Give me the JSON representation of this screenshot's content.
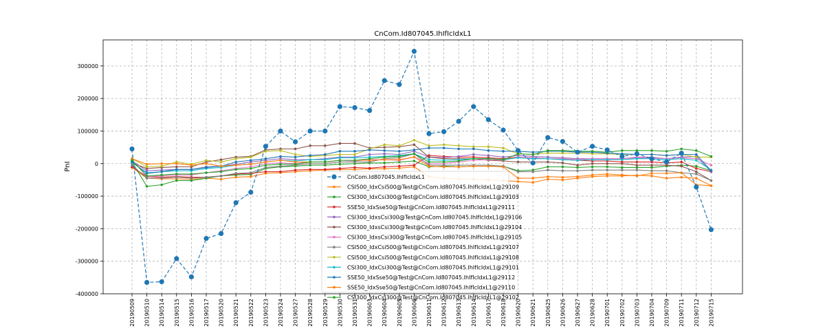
{
  "chart_data": {
    "type": "line",
    "title": "CnCom.Id807045.IhIfIcIdxL1",
    "xlabel": "",
    "ylabel": "PnI",
    "ylim": [
      -400000,
      380000
    ],
    "yticks": [
      -400000,
      -300000,
      -200000,
      -100000,
      0,
      100000,
      200000,
      300000
    ],
    "grid": true,
    "legend_position": "lower-center",
    "x": [
      "20190509",
      "20190510",
      "20190514",
      "20190515",
      "20190516",
      "20190517",
      "20190520",
      "20190521",
      "20190522",
      "20190523",
      "20190524",
      "20190527",
      "20190528",
      "20190529",
      "20190530",
      "20190531",
      "20190603",
      "20190604",
      "20190605",
      "20190606",
      "20190611",
      "20190612",
      "20190613",
      "20190614",
      "20190617",
      "20190618",
      "20190620",
      "20190621",
      "20190625",
      "20190626",
      "20190627",
      "20190628",
      "20190701",
      "20190702",
      "20190703",
      "20190704",
      "20190709",
      "20190711",
      "20190712",
      "20190715"
    ],
    "series": [
      {
        "name": "CnCom.Id807045.IhIfIcIdxL1",
        "color": "#1f77b4",
        "style": "dashed-big",
        "values": [
          45000,
          -365000,
          -363000,
          -292000,
          -348000,
          -230000,
          -215000,
          -120000,
          -88000,
          53000,
          100000,
          67000,
          100000,
          100000,
          175000,
          172000,
          163000,
          255000,
          243000,
          345000,
          92000,
          98000,
          130000,
          175000,
          135000,
          103000,
          40000,
          2000,
          80000,
          68000,
          35000,
          53000,
          42000,
          22000,
          30000,
          15000,
          5000,
          32000,
          -72000,
          -203000
        ]
      },
      {
        "name": "CSI500_IdxCsi500@Test@CnCom.Id807045.IhIfIcIdxL1@29109",
        "color": "#ff7f0e",
        "values": [
          -12000,
          -45000,
          -47000,
          -47000,
          -48000,
          -45000,
          -48000,
          -42000,
          -40000,
          -30000,
          -28000,
          -25000,
          -22000,
          -20000,
          -18000,
          -18000,
          -16000,
          -16000,
          -14000,
          -10000,
          -40000,
          -45000,
          -47000,
          -48000,
          -50000,
          -52000,
          -55000,
          -58000,
          -48000,
          -50000,
          -45000,
          -40000,
          -38000,
          -38000,
          -36000,
          -38000,
          -45000,
          -42000,
          -45000,
          -68000
        ]
      },
      {
        "name": "CSI300_IdxCsi300@Test@CnCom.Id807045.IhIfIcIdxL1@29103",
        "color": "#2ca02c",
        "values": [
          5000,
          -70000,
          -65000,
          -52000,
          -52000,
          -45000,
          -38000,
          -35000,
          -33000,
          -15000,
          -10000,
          -8000,
          -5000,
          -5000,
          -2000,
          0,
          2000,
          2000,
          5000,
          8000,
          -10000,
          -8000,
          -10000,
          -8000,
          -8000,
          -8000,
          -22000,
          -20000,
          -10000,
          -10000,
          -12000,
          -10000,
          -10000,
          -12000,
          -12000,
          -12000,
          -8000,
          -5000,
          -8000,
          -22000
        ]
      },
      {
        "name": "SSE50_IdxSse50@Test@CnCom.Id807045.IhIfIcIdxL1@29111",
        "color": "#d62728",
        "values": [
          -10000,
          -40000,
          -42000,
          -40000,
          -42000,
          -42000,
          -38000,
          -32000,
          -30000,
          -25000,
          -25000,
          -20000,
          -18000,
          -18000,
          -15000,
          -12000,
          -14000,
          -10000,
          -8000,
          -5000,
          25000,
          22000,
          20000,
          20000,
          18000,
          15000,
          20000,
          18000,
          15000,
          12000,
          10000,
          8000,
          8000,
          5000,
          5000,
          5000,
          2000,
          5000,
          -15000,
          -25000
        ]
      },
      {
        "name": "CSI300_IdxsCsi300@Test@CnCom.Id807045.IhIfIcIdxL1@29106",
        "color": "#9467bd",
        "values": [
          8000,
          -22000,
          -20000,
          -18000,
          -18000,
          -10000,
          -8000,
          -2000,
          5000,
          10000,
          15000,
          12000,
          12000,
          15000,
          20000,
          20000,
          28000,
          30000,
          28000,
          38000,
          20000,
          18000,
          22000,
          28000,
          25000,
          20000,
          25000,
          22000,
          20000,
          18000,
          15000,
          15000,
          15000,
          15000,
          18000,
          18000,
          15000,
          20000,
          22000,
          -25000
        ]
      },
      {
        "name": "CSI300_IdxsCsi300@Test@CnCom.Id807045.IhIfIcIdxL1@29104",
        "color": "#8c564b",
        "values": [
          2000,
          -15000,
          -12000,
          -10000,
          -10000,
          5000,
          12000,
          20000,
          22000,
          42000,
          45000,
          45000,
          55000,
          55000,
          62000,
          62000,
          48000,
          50000,
          52000,
          58000,
          20000,
          15000,
          15000,
          15000,
          10000,
          8000,
          5000,
          5000,
          5000,
          2000,
          -5000,
          0,
          0,
          0,
          -5000,
          -5000,
          -5000,
          -8000,
          -25000,
          -52000
        ]
      },
      {
        "name": "CSI300_IdxsCsi300@Test@CnCom.Id807045.IhIfIcIdxL1@29105",
        "color": "#e377c2",
        "values": [
          12000,
          -40000,
          -38000,
          -35000,
          -35000,
          -28000,
          -22000,
          -15000,
          -10000,
          0,
          2000,
          0,
          5000,
          5000,
          10000,
          8000,
          12000,
          12000,
          10000,
          20000,
          0,
          0,
          5000,
          10000,
          12000,
          10000,
          20000,
          18000,
          15000,
          15000,
          12000,
          15000,
          15000,
          15000,
          20000,
          20000,
          15000,
          18000,
          15000,
          -5000
        ]
      },
      {
        "name": "CSI500_IdxCsi500@Test@CnCom.Id807045.IhIfIcIdxL1@29107",
        "color": "#7f7f7f",
        "values": [
          -5000,
          -45000,
          -45000,
          -42000,
          -45000,
          -42000,
          -38000,
          -30000,
          -28000,
          -12000,
          -8000,
          -5000,
          0,
          0,
          5000,
          5000,
          5000,
          15000,
          18000,
          30000,
          -5000,
          -5000,
          -5000,
          -5000,
          -5000,
          -8000,
          -25000,
          -25000,
          -20000,
          -22000,
          -22000,
          -20000,
          -20000,
          -20000,
          -20000,
          -22000,
          -22000,
          -28000,
          -32000,
          -52000
        ]
      },
      {
        "name": "CSI500_IdxCsi500@Test@CnCom.Id807045.IhIfIcIdxL1@29108",
        "color": "#bcbd22",
        "values": [
          15000,
          -10000,
          -8000,
          5000,
          -2000,
          10000,
          5000,
          15000,
          20000,
          38000,
          40000,
          28000,
          22000,
          25000,
          28000,
          28000,
          45000,
          58000,
          55000,
          72000,
          55000,
          58000,
          55000,
          52000,
          52000,
          48000,
          30000,
          28000,
          32000,
          32000,
          32000,
          30000,
          30000,
          28000,
          28000,
          28000,
          25000,
          28000,
          20000,
          20000
        ]
      },
      {
        "name": "CSI300_IdxCsi300@Test@CnCom.Id807045.IhIfIcIdxL1@29101",
        "color": "#17becf",
        "values": [
          3000,
          -28000,
          -25000,
          -22000,
          -22000,
          -15000,
          -12000,
          -5000,
          -2000,
          5000,
          10000,
          8000,
          12000,
          12000,
          18000,
          18000,
          20000,
          22000,
          25000,
          30000,
          12000,
          10000,
          12000,
          15000,
          15000,
          12000,
          18000,
          15000,
          15000,
          12000,
          10000,
          12000,
          12000,
          12000,
          15000,
          15000,
          12000,
          15000,
          10000,
          -20000
        ]
      },
      {
        "name": "SSE50_IdxSse50@Test@CnCom.Id807045.IhIfIcIdxL1@29112",
        "color": "#1f77b4",
        "values": [
          5000,
          -30000,
          -25000,
          -18000,
          -18000,
          -12000,
          -8000,
          5000,
          10000,
          15000,
          22000,
          20000,
          25000,
          28000,
          38000,
          38000,
          42000,
          40000,
          38000,
          42000,
          48000,
          48000,
          45000,
          45000,
          40000,
          38000,
          38000,
          35000,
          38000,
          38000,
          35000,
          35000,
          32000,
          30000,
          28000,
          28000,
          25000,
          28000,
          28000,
          -22000
        ]
      },
      {
        "name": "SSE50_IdxSse50@Test@CnCom.Id807045.IhIfIcIdxL1@29110",
        "color": "#ff7f0e",
        "values": [
          15000,
          -2000,
          0,
          0,
          -5000,
          0,
          -8000,
          -5000,
          -2000,
          5000,
          10000,
          5000,
          5000,
          5000,
          10000,
          10000,
          10000,
          12000,
          12000,
          20000,
          -8000,
          -10000,
          -10000,
          -8000,
          -8000,
          -10000,
          -45000,
          -45000,
          -40000,
          -42000,
          -40000,
          -35000,
          -32000,
          -35000,
          -38000,
          -30000,
          -30000,
          -28000,
          -65000,
          -68000
        ]
      },
      {
        "name": "CSI300_IdxCsi300@Test@CnCom.Id807045.IhIfIcIdxL1@29102",
        "color": "#2ca02c",
        "values": [
          10000,
          -38000,
          -35000,
          -32000,
          -32000,
          -28000,
          -25000,
          -18000,
          -15000,
          -5000,
          -2000,
          -2000,
          5000,
          5000,
          10000,
          10000,
          15000,
          20000,
          22000,
          30000,
          5000,
          5000,
          8000,
          15000,
          15000,
          12000,
          30000,
          28000,
          40000,
          40000,
          38000,
          38000,
          35000,
          40000,
          40000,
          40000,
          38000,
          45000,
          40000,
          22000
        ]
      }
    ]
  }
}
